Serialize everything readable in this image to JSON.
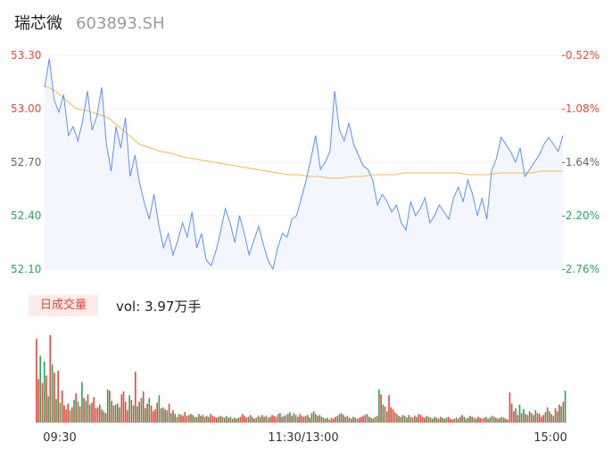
{
  "header": {
    "name": "瑞芯微",
    "code": "603893.SH"
  },
  "volume_panel": {
    "tab_label": "日成交量",
    "vol_prefix": "vol:",
    "vol_value": "3.97万手"
  },
  "colors": {
    "price_line": "#5b8ff9",
    "avg_line": "#f5b94a",
    "up": "#e8443a",
    "down": "#26a65b",
    "area_top": "#f3f6ff"
  },
  "chart_data": [
    {
      "type": "line",
      "title": "",
      "xlabel": "",
      "ylabel": "",
      "x_ticks": [
        "09:30",
        "11:30/13:00",
        "15:00"
      ],
      "y_left_ticks": [
        "53.30",
        "53.00",
        "52.70",
        "52.40",
        "52.10"
      ],
      "y_right_ticks": [
        "-0.52%",
        "-1.08%",
        "-1.64%",
        "-2.20%",
        "-2.76%"
      ],
      "ylim": [
        52.1,
        53.3
      ],
      "series": [
        {
          "role": "price",
          "values": [
            53.12,
            53.28,
            53.05,
            52.98,
            53.08,
            52.85,
            52.9,
            52.82,
            52.93,
            53.1,
            52.88,
            52.96,
            53.12,
            52.8,
            52.65,
            52.9,
            52.78,
            52.95,
            52.62,
            52.74,
            52.58,
            52.47,
            52.38,
            52.52,
            52.35,
            52.22,
            52.3,
            52.18,
            52.26,
            52.36,
            52.28,
            52.42,
            52.22,
            52.3,
            52.15,
            52.12,
            52.2,
            52.31,
            52.44,
            52.36,
            52.25,
            52.4,
            52.3,
            52.18,
            52.26,
            52.34,
            52.24,
            52.15,
            52.1,
            52.22,
            52.3,
            52.28,
            52.38,
            52.4,
            52.5,
            52.6,
            52.72,
            52.85,
            52.66,
            52.7,
            52.76,
            53.1,
            52.88,
            52.82,
            52.92,
            52.8,
            52.74,
            52.68,
            52.66,
            52.6,
            52.46,
            52.52,
            52.48,
            52.42,
            52.46,
            52.36,
            52.32,
            52.48,
            52.4,
            52.44,
            52.5,
            52.36,
            52.4,
            52.46,
            52.42,
            52.38,
            52.5,
            52.56,
            52.48,
            52.6,
            52.52,
            52.4,
            52.5,
            52.38,
            52.65,
            52.72,
            52.84,
            52.8,
            52.76,
            52.7,
            52.78,
            52.62,
            52.66,
            52.7,
            52.74,
            52.8,
            52.84,
            52.8,
            52.76,
            52.85
          ],
          "note": "approximate intraday trace"
        },
        {
          "role": "average",
          "values": [
            53.13,
            53.1,
            53.05,
            53.0,
            52.99,
            52.97,
            52.95,
            52.9,
            52.85,
            52.8,
            52.78,
            52.76,
            52.75,
            52.73,
            52.72,
            52.71,
            52.7,
            52.69,
            52.68,
            52.67,
            52.66,
            52.65,
            52.64,
            52.63,
            52.63,
            52.62,
            52.62,
            52.61,
            52.61,
            52.62,
            52.62,
            52.63,
            52.63,
            52.63,
            52.64,
            52.64,
            52.64,
            52.64,
            52.64,
            52.64,
            52.63,
            52.63,
            52.63,
            52.64,
            52.64,
            52.64,
            52.64,
            52.65,
            52.65,
            52.65
          ]
        }
      ]
    },
    {
      "type": "bar",
      "title": "",
      "categories_range": [
        "09:30",
        "15:00"
      ],
      "values": [
        8.9,
        4.6,
        7.1,
        4.2,
        6.5,
        5.0,
        2.8,
        9.3,
        6.2,
        5.3,
        2.5,
        5.5,
        2.1,
        3.4,
        1.8,
        1.4,
        2.0,
        1.3,
        1.6,
        2.4,
        3.1,
        2.2,
        1.7,
        4.3,
        2.6,
        2.3,
        3.0,
        1.9,
        2.1,
        2.7,
        1.5,
        1.6,
        1.9,
        1.4,
        1.2,
        1.0,
        3.5,
        3.4,
        2.3,
        1.8,
        1.9,
        2.0,
        1.6,
        3.0,
        3.3,
        2.2,
        1.3,
        2.9,
        2.4,
        1.8,
        5.4,
        1.7,
        2.2,
        2.6,
        3.3,
        1.5,
        2.0,
        2.6,
        1.8,
        1.2,
        1.4,
        2.1,
        2.9,
        1.5,
        1.6,
        1.4,
        1.3,
        2.0,
        1.0,
        1.3,
        0.9,
        0.6,
        0.9,
        0.8,
        0.7,
        1.1,
        0.7,
        0.8,
        0.9,
        0.8,
        0.6,
        0.6,
        0.9,
        0.7,
        0.8,
        0.6,
        0.7,
        0.6,
        0.9,
        0.7,
        0.6,
        0.5,
        0.6,
        0.7,
        0.6,
        0.5,
        0.7,
        0.5,
        0.6,
        0.4,
        0.5,
        0.4,
        0.5,
        0.6,
        0.9,
        0.7,
        0.5,
        0.6,
        0.8,
        0.6,
        0.4,
        0.5,
        0.7,
        0.6,
        0.8,
        0.6,
        0.7,
        0.5,
        0.6,
        0.8,
        0.7,
        0.6,
        0.9,
        1.0,
        0.6,
        0.7,
        0.8,
        0.9,
        1.1,
        0.7,
        1.0,
        0.8,
        0.6,
        0.9,
        0.7,
        0.6,
        0.7,
        0.8,
        0.5,
        1.0,
        1.2,
        0.9,
        0.7,
        0.8,
        0.6,
        0.5,
        0.4,
        0.5,
        0.3,
        0.5,
        0.4,
        0.6,
        0.7,
        0.9,
        1.0,
        0.8,
        0.6,
        0.7,
        0.5,
        0.4,
        0.6,
        0.5,
        0.4,
        0.5,
        0.6,
        0.7,
        0.8,
        0.9,
        0.6,
        0.5,
        0.4,
        0.6,
        0.7,
        3.5,
        3.0,
        1.9,
        1.7,
        1.2,
        2.9,
        1.6,
        1.4,
        1.1,
        0.9,
        0.7,
        0.6,
        0.8,
        0.7,
        0.5,
        0.8,
        0.6,
        0.5,
        0.7,
        0.6,
        0.9,
        0.8,
        0.6,
        0.5,
        0.7,
        0.6,
        0.5,
        0.4,
        0.6,
        0.5,
        0.4,
        0.6,
        0.5,
        0.4,
        0.5,
        0.6,
        0.4,
        0.3,
        0.4,
        0.5,
        0.4,
        0.6,
        0.8,
        0.6,
        0.4,
        0.5,
        0.7,
        0.6,
        0.5,
        0.4,
        0.6,
        0.5,
        0.4,
        0.5,
        0.6,
        0.4,
        0.5,
        0.7,
        0.6,
        0.5,
        0.4,
        0.5,
        0.6,
        0.5,
        0.4,
        0.3,
        3.2,
        2.0,
        1.2,
        1.5,
        0.8,
        1.9,
        1.0,
        1.4,
        0.9,
        0.8,
        1.2,
        1.0,
        0.8,
        1.3,
        1.0,
        0.9,
        0.6,
        0.8,
        1.1,
        1.6,
        1.2,
        0.9,
        0.7,
        1.5,
        1.2,
        1.9,
        1.7,
        2.2,
        3.4
      ],
      "colors_pattern": "alternating up/down by price move"
    }
  ]
}
